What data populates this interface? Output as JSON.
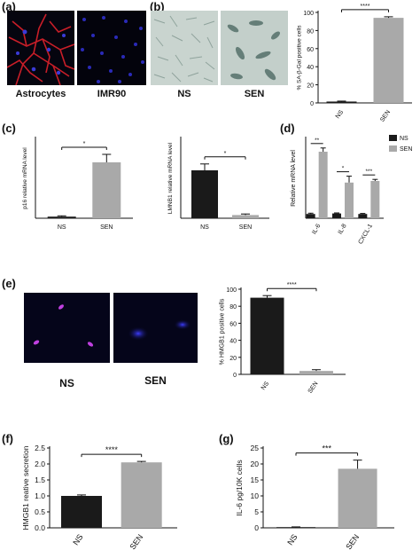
{
  "colors": {
    "ns": "#1a1a1a",
    "sen": "#a9a9a9",
    "axis": "#111111"
  },
  "panels": {
    "a": {
      "label": "(a)",
      "captions": [
        "Astrocytes",
        "IMR90"
      ]
    },
    "b": {
      "label": "(b)",
      "captions": [
        "NS",
        "SEN"
      ]
    },
    "c": {
      "label": "(c)"
    },
    "d": {
      "label": "(d)"
    },
    "e": {
      "label": "(e)",
      "captions": [
        "NS",
        "SEN"
      ]
    },
    "f": {
      "label": "(f)"
    },
    "g": {
      "label": "(g)"
    }
  },
  "chart_data": [
    {
      "id": "b",
      "type": "bar",
      "categories": [
        "NS",
        "SEN"
      ],
      "values": [
        1.5,
        94
      ],
      "errors": [
        0.5,
        1.2
      ],
      "ylabel": "% SA-β-Gal positive cells",
      "ylim": [
        0,
        100
      ],
      "yticks": [
        "0",
        "20",
        "40",
        "60",
        "80",
        "100"
      ],
      "significance": "****"
    },
    {
      "id": "c1",
      "type": "bar",
      "categories": [
        "NS",
        "SEN"
      ],
      "values": [
        1,
        35
      ],
      "errors": [
        0.5,
        5
      ],
      "ylabel": "p16 relative mRNA level",
      "ylim": [
        0,
        50
      ],
      "significance": "*"
    },
    {
      "id": "c2",
      "type": "bar",
      "categories": [
        "NS",
        "SEN"
      ],
      "values": [
        0.9,
        0.06
      ],
      "errors": [
        0.12,
        0.02
      ],
      "ylabel": "LMNB1 relative mRNA level",
      "ylim": [
        0,
        1.5
      ],
      "significance": "*"
    },
    {
      "id": "d",
      "type": "bar",
      "categories": [
        "IL-6",
        "IL-8",
        "CXCL-1"
      ],
      "series": [
        {
          "name": "NS",
          "values": [
            0.8,
            0.9,
            0.8
          ],
          "errors": [
            0.15,
            0.1,
            0.1
          ]
        },
        {
          "name": "SEN",
          "values": [
            12.5,
            6.7,
            7.0
          ],
          "errors": [
            0.7,
            1.2,
            0.3
          ]
        }
      ],
      "ylabel": "Relative mRNA level",
      "ylim": [
        0,
        15
      ],
      "significance": [
        "**",
        "*",
        "***"
      ],
      "legend": "top-right"
    },
    {
      "id": "e",
      "type": "bar",
      "categories": [
        "NS",
        "SEN"
      ],
      "values": [
        90,
        4
      ],
      "errors": [
        2.5,
        1.5
      ],
      "ylabel": "% HMGB1 positive cells",
      "ylim": [
        0,
        100
      ],
      "yticks": [
        "0",
        "20",
        "40",
        "60",
        "80",
        "100"
      ],
      "significance": "****"
    },
    {
      "id": "f",
      "type": "bar",
      "categories": [
        "NS",
        "SEN"
      ],
      "values": [
        1.0,
        2.05
      ],
      "errors": [
        0.03,
        0.03
      ],
      "ylabel": "HMGB1 reative secretion",
      "ylim": [
        0,
        2.5
      ],
      "yticks": [
        "0.0",
        "0.5",
        "1.0",
        "1.5",
        "2.0",
        "2.5"
      ],
      "significance": "****"
    },
    {
      "id": "g",
      "type": "bar",
      "categories": [
        "NS",
        "SEN"
      ],
      "values": [
        0.2,
        18.5
      ],
      "errors": [
        0.1,
        2.7
      ],
      "ylabel": "IL-6 pg/10K cells",
      "ylim": [
        0,
        25
      ],
      "yticks": [
        "0",
        "5",
        "10",
        "15",
        "20",
        "25"
      ],
      "significance": "***"
    }
  ]
}
